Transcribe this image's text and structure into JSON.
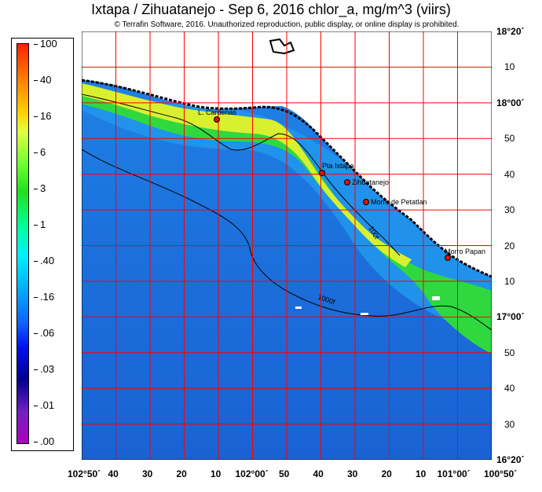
{
  "title": "Ixtapa / Zihuatanejo - Sep 6, 2016  chlor_a, mg/m^3 (viirs)",
  "copyright": "© Terrafin Software,  2016.  Unauthorized reproduction, public display, or online display is prohibited.",
  "legend": {
    "ticks": [
      "100",
      "40",
      "16",
      "6",
      "3",
      "1",
      ".40",
      ".16",
      ".06",
      ".03",
      ".01",
      ".00"
    ]
  },
  "lat_labels": [
    "18°20´",
    "10",
    "18°00´",
    "50",
    "40",
    "30",
    "20",
    "10",
    "17°00´",
    "50",
    "40",
    "30",
    "16°20´"
  ],
  "lon_labels": [
    "102°50´",
    "40",
    "30",
    "20",
    "10",
    "102°00´",
    "50",
    "40",
    "30",
    "20",
    "10",
    "101°00´",
    "100°50´"
  ],
  "places": [
    {
      "name": "L. Cardenas"
    },
    {
      "name": "Pta Ixtapa"
    },
    {
      "name": "Zihuatanejo"
    },
    {
      "name": "Morro de Petatlan"
    },
    {
      "name": "Morro Papan"
    }
  ],
  "contours": [
    "100f",
    "1000f"
  ],
  "colors": {
    "grid": "#ff0000",
    "deep_ocean": "#1a66d8",
    "coast_band": "#c8f030",
    "land": "#ffffff"
  }
}
